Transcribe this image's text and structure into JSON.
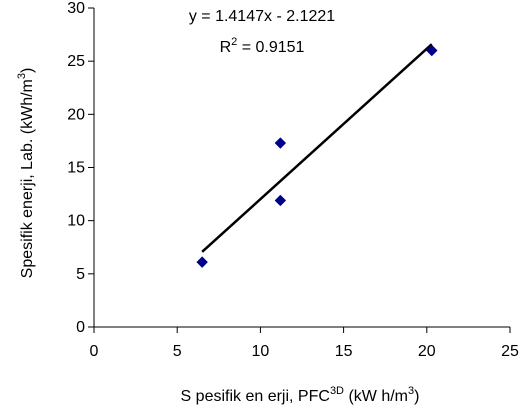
{
  "chart_data": {
    "type": "scatter",
    "title": "",
    "xlabel": {
      "base": "S pesifik en erji,  PFC",
      "sup": "3D",
      "unit_pre": " (kW h/m",
      "unit_sup": "3",
      "unit_post": ")"
    },
    "ylabel": {
      "base": "Spesifik enerji,  Lab. (kWh/m",
      "sup": "3",
      "post": ")"
    },
    "xlim": [
      0,
      25
    ],
    "ylim": [
      0,
      30
    ],
    "xticks": [
      0,
      5,
      10,
      15,
      20,
      25
    ],
    "yticks": [
      0,
      5,
      10,
      15,
      20,
      25,
      30
    ],
    "grid": false,
    "series": [
      {
        "points": [
          {
            "x": 6.5,
            "y": 6.1
          },
          {
            "x": 11.2,
            "y": 11.9
          },
          {
            "x": 11.2,
            "y": 17.3
          },
          {
            "x": 20.3,
            "y": 26.0
          }
        ],
        "marker": "diamond",
        "color": "#00008b"
      }
    ],
    "trendline": {
      "slope": 1.4147,
      "intercept": -2.1221,
      "x_range": [
        6.5,
        20.3
      ],
      "color": "#000000"
    },
    "annotations": {
      "equation": "y = 1.4147x - 2.1221",
      "r2_prefix": "R",
      "r2_sup": "2",
      "r2_suffix": " = 0.9151"
    }
  }
}
